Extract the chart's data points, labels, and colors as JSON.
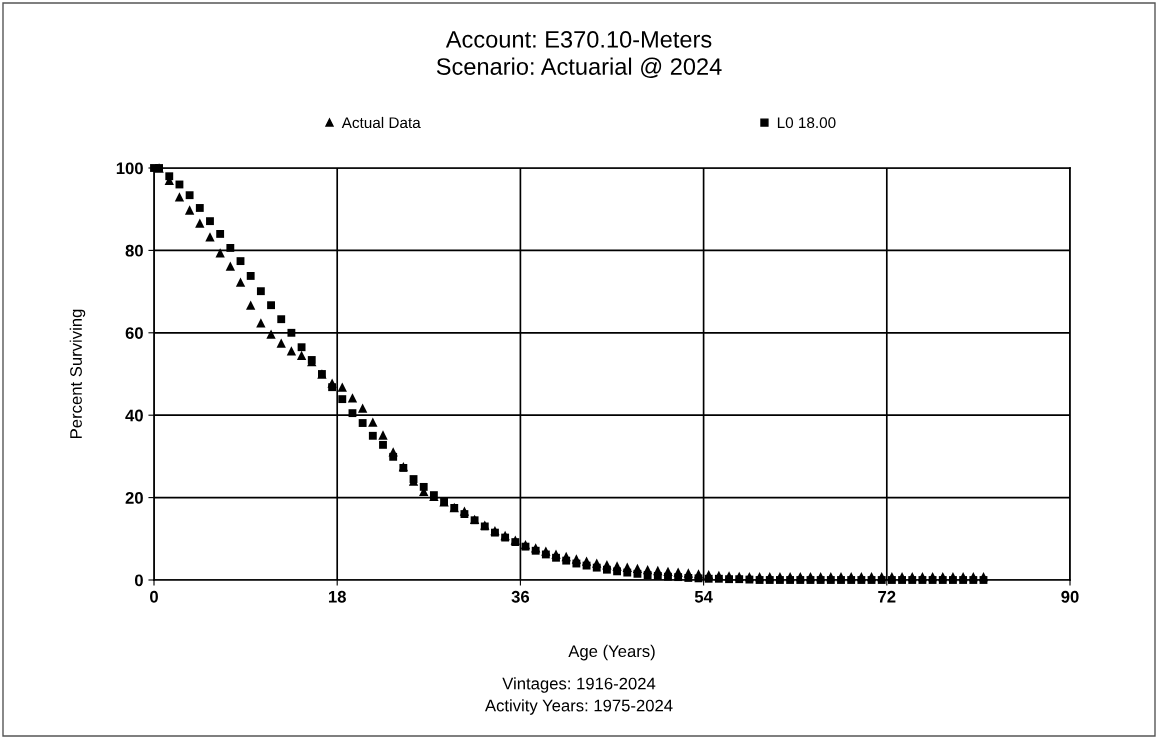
{
  "chart_data": {
    "type": "scatter",
    "title": "Account: E370.10-Meters\nScenario: Actuarial @ 2024",
    "xlabel": "Age (Years)",
    "ylabel": "Percent Surviving",
    "annotations": [
      "Vintages: 1916-2024",
      "Activity Years: 1975-2024"
    ],
    "xlim": [
      0,
      90
    ],
    "xticks": [
      0,
      18,
      36,
      54,
      72,
      90
    ],
    "ylim": [
      0,
      100
    ],
    "yticks": [
      0,
      20,
      40,
      60,
      80,
      100
    ],
    "grid": true,
    "legend": "top",
    "series": [
      {
        "name": "Actual Data",
        "color": "#000000",
        "marker": "triangle",
        "x": [
          0.5,
          1.5,
          2.5,
          3.5,
          4.5,
          5.5,
          6.5,
          7.5,
          8.5,
          9.5,
          10.5,
          11.5,
          12.5,
          13.5,
          14.5,
          15.5,
          16.5,
          17.5,
          18.5,
          19.5,
          20.5,
          21.5,
          22.5,
          23.5,
          24.5,
          25.5,
          26.5,
          27.5,
          28.5,
          29.5,
          30.5,
          31.5,
          32.5,
          33.5,
          34.5,
          35.5,
          36.5,
          37.5,
          38.5,
          39.5,
          40.5,
          41.5,
          42.5,
          43.5,
          44.5,
          45.5,
          46.5,
          47.5,
          48.5,
          49.5,
          50.5,
          51.5,
          52.5,
          53.5,
          54.5,
          55.5,
          56.5,
          57.5,
          58.5,
          59.5,
          60.5,
          61.5,
          62.5,
          63.5,
          64.5,
          65.5,
          66.5,
          67.5,
          68.5,
          69.5,
          70.5,
          71.5,
          72.5,
          73.5,
          74.5,
          75.5,
          76.5,
          77.5,
          78.5,
          79.5,
          80.5,
          81.5
        ],
        "values": [
          100,
          97,
          93,
          89.8,
          86.6,
          83.3,
          79.4,
          76.2,
          72.3,
          66.7,
          62.4,
          59.7,
          57.5,
          55.6,
          54.5,
          53,
          50,
          47.8,
          46.8,
          44.2,
          41.7,
          38.3,
          35.2,
          31.1,
          27.5,
          24,
          21.5,
          20.3,
          19,
          17.6,
          16.7,
          14.7,
          13.3,
          12,
          10.8,
          9.7,
          8.6,
          7.8,
          7,
          6.3,
          5.7,
          5.1,
          4.6,
          4.1,
          3.7,
          3.4,
          3.1,
          2.8,
          2.5,
          2.3,
          2.1,
          1.9,
          1.7,
          1.5,
          1.3,
          1.1,
          1,
          0.9,
          0.8,
          0.8,
          0.8,
          0.8,
          0.8,
          0.8,
          0.8,
          0.8,
          0.8,
          0.8,
          0.8,
          0.8,
          0.8,
          0.8,
          0.8,
          0.8,
          0.8,
          0.8,
          0.8,
          0.8,
          0.8,
          0.8,
          0.8,
          0.8
        ]
      },
      {
        "name": "L0 18.00",
        "color": "#000000",
        "marker": "square",
        "x": [
          0,
          0.5,
          1.5,
          2.5,
          3.5,
          4.5,
          5.5,
          6.5,
          7.5,
          8.5,
          9.5,
          10.5,
          11.5,
          12.5,
          13.5,
          14.5,
          15.5,
          16.5,
          17.5,
          18.5,
          19.5,
          20.5,
          21.5,
          22.5,
          23.5,
          24.5,
          25.5,
          26.5,
          27.5,
          28.5,
          29.5,
          30.5,
          31.5,
          32.5,
          33.5,
          34.5,
          35.5,
          36.5,
          37.5,
          38.5,
          39.5,
          40.5,
          41.5,
          42.5,
          43.5,
          44.5,
          45.5,
          46.5,
          47.5,
          48.5,
          49.5,
          50.5,
          51.5,
          52.5,
          53.5,
          54.5,
          55.5,
          56.5,
          57.5,
          58.5,
          59.5,
          60.5,
          61.5,
          62.5,
          63.5,
          64.5,
          65.5,
          66.5,
          67.5,
          68.5,
          69.5,
          70.5,
          71.5,
          72.5,
          73.5,
          74.5,
          75.5,
          76.5,
          77.5,
          78.5,
          79.5,
          80.5,
          81.5
        ],
        "values": [
          100,
          100,
          98,
          96,
          93.4,
          90.3,
          87.1,
          84,
          80.6,
          77.4,
          73.8,
          70.1,
          66.7,
          63.3,
          60,
          56.5,
          53.4,
          50,
          46.8,
          43.9,
          40.5,
          38.1,
          35,
          32.8,
          29.9,
          27.2,
          24.5,
          22.6,
          20.6,
          19,
          17.5,
          16,
          14.5,
          13,
          11.5,
          10.3,
          9.2,
          8.1,
          7.1,
          6.2,
          5.4,
          4.7,
          4,
          3.5,
          3,
          2.5,
          2.1,
          1.8,
          1.5,
          1.2,
          1,
          0.8,
          0.7,
          0.5,
          0.4,
          0.3,
          0.3,
          0.2,
          0.2,
          0.1,
          0,
          0,
          0,
          0,
          0,
          0,
          0,
          0,
          0,
          0,
          0,
          0,
          0,
          0,
          0,
          0,
          0,
          0,
          0,
          0,
          0,
          0,
          0
        ]
      }
    ]
  }
}
